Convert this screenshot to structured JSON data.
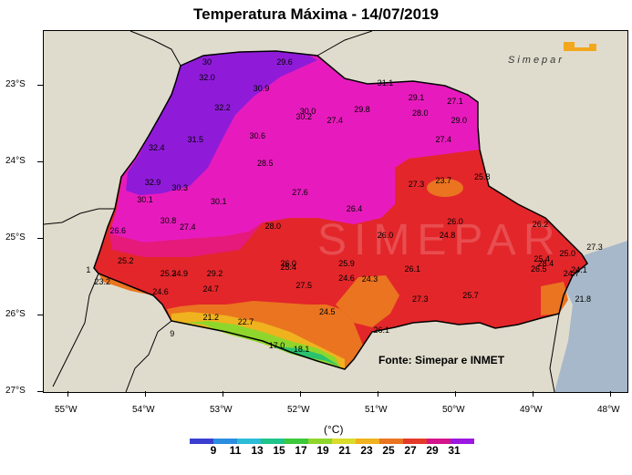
{
  "title": "Temperatura Máxima - 14/07/2019",
  "source": "Fonte: Simepar e INMET",
  "logo": "Simepar",
  "unit": "(°C)",
  "lat_labels": [
    "23°S",
    "24°S",
    "25°S",
    "26°S",
    "27°S"
  ],
  "lon_labels": [
    "55°W",
    "54°W",
    "53°W",
    "52°W",
    "51°W",
    "50°W",
    "49°W",
    "48°W"
  ],
  "colorbar": {
    "labels": [
      "9",
      "11",
      "13",
      "15",
      "17",
      "19",
      "21",
      "23",
      "25",
      "27",
      "29",
      "31"
    ],
    "colors": [
      "#3a3fd0",
      "#2b8de0",
      "#2bbcd6",
      "#1fc48a",
      "#3cc83a",
      "#8fd62c",
      "#d9dc2a",
      "#f0b21e",
      "#ea7420",
      "#e53a2a",
      "#d4148a",
      "#9a18e0"
    ]
  },
  "station_values": [
    {
      "label": "30",
      "lon": -53.2,
      "lat": -22.7
    },
    {
      "label": "29.6",
      "lon": -52.2,
      "lat": -22.7
    },
    {
      "label": "32.0",
      "lon": -53.2,
      "lat": -22.9
    },
    {
      "label": "30.9",
      "lon": -52.5,
      "lat": -23.05
    },
    {
      "label": "31.1",
      "lon": -50.9,
      "lat": -22.98
    },
    {
      "label": "29.1",
      "lon": -50.5,
      "lat": -23.17
    },
    {
      "label": "27.1",
      "lon": -50.0,
      "lat": -23.22
    },
    {
      "label": "32.2",
      "lon": -53.0,
      "lat": -23.3
    },
    {
      "label": "30.0",
      "lon": -51.9,
      "lat": -23.35
    },
    {
      "label": "30.2",
      "lon": -51.95,
      "lat": -23.42
    },
    {
      "label": "29.8",
      "lon": -51.2,
      "lat": -23.32
    },
    {
      "label": "28.0",
      "lon": -50.45,
      "lat": -23.37
    },
    {
      "label": "29.0",
      "lon": -49.95,
      "lat": -23.47
    },
    {
      "label": "27.4",
      "lon": -51.55,
      "lat": -23.47
    },
    {
      "label": "30.6",
      "lon": -52.55,
      "lat": -23.67
    },
    {
      "label": "31.5",
      "lon": -53.35,
      "lat": -23.72
    },
    {
      "label": "32.4",
      "lon": -53.85,
      "lat": -23.82
    },
    {
      "label": "27.4",
      "lon": -50.15,
      "lat": -23.72
    },
    {
      "label": "28.5",
      "lon": -52.45,
      "lat": -24.02
    },
    {
      "label": "25.8",
      "lon": -49.65,
      "lat": -24.2
    },
    {
      "label": "23.7",
      "lon": -50.15,
      "lat": -24.25
    },
    {
      "label": "27.3",
      "lon": -50.5,
      "lat": -24.3
    },
    {
      "label": "32.9",
      "lon": -53.9,
      "lat": -24.27
    },
    {
      "label": "30.3",
      "lon": -53.55,
      "lat": -24.35
    },
    {
      "label": "27.6",
      "lon": -52.0,
      "lat": -24.4
    },
    {
      "label": "30.1",
      "lon": -54.0,
      "lat": -24.5
    },
    {
      "label": "30.1",
      "lon": -53.05,
      "lat": -24.52
    },
    {
      "label": "26.4",
      "lon": -51.3,
      "lat": -24.62
    },
    {
      "label": "26.0",
      "lon": -50.0,
      "lat": -24.78
    },
    {
      "label": "26.2",
      "lon": -48.9,
      "lat": -24.82
    },
    {
      "label": "30.8",
      "lon": -53.7,
      "lat": -24.77
    },
    {
      "label": "27.4",
      "lon": -53.45,
      "lat": -24.86
    },
    {
      "label": "28.0",
      "lon": -52.35,
      "lat": -24.84
    },
    {
      "label": "26.6",
      "lon": -54.35,
      "lat": -24.9
    },
    {
      "label": "26.0",
      "lon": -50.9,
      "lat": -24.97
    },
    {
      "label": "24.8",
      "lon": -50.1,
      "lat": -24.97
    },
    {
      "label": "27.3",
      "lon": -48.2,
      "lat": -25.12
    },
    {
      "label": "25.0",
      "lon": -48.55,
      "lat": -25.2
    },
    {
      "label": "25.2",
      "lon": -54.25,
      "lat": -25.3
    },
    {
      "label": "25.4",
      "lon": -48.88,
      "lat": -25.27
    },
    {
      "label": "28.4",
      "lon": -48.83,
      "lat": -25.33
    },
    {
      "label": "26.0",
      "lon": -52.15,
      "lat": -25.33
    },
    {
      "label": "25.9",
      "lon": -51.4,
      "lat": -25.33
    },
    {
      "label": "25.4",
      "lon": -52.15,
      "lat": -25.38
    },
    {
      "label": "26.1",
      "lon": -50.55,
      "lat": -25.41
    },
    {
      "label": "26.5",
      "lon": -48.92,
      "lat": -25.41
    },
    {
      "label": "24.1",
      "lon": -48.4,
      "lat": -25.42
    },
    {
      "label": "1",
      "lon": -54.73,
      "lat": -25.42
    },
    {
      "label": "25.3",
      "lon": -53.7,
      "lat": -25.47
    },
    {
      "label": "24.9",
      "lon": -53.55,
      "lat": -25.47
    },
    {
      "label": "29.2",
      "lon": -53.1,
      "lat": -25.47
    },
    {
      "label": "24.7",
      "lon": -48.5,
      "lat": -25.47
    },
    {
      "label": "24.6",
      "lon": -51.4,
      "lat": -25.52
    },
    {
      "label": "24.3",
      "lon": -51.1,
      "lat": -25.54
    },
    {
      "label": "23.2",
      "lon": -54.55,
      "lat": -25.57
    },
    {
      "label": "27.5",
      "lon": -51.95,
      "lat": -25.62
    },
    {
      "label": "24.6",
      "lon": -53.8,
      "lat": -25.7
    },
    {
      "label": "24.7",
      "lon": -53.15,
      "lat": -25.67
    },
    {
      "label": "25.7",
      "lon": -49.8,
      "lat": -25.75
    },
    {
      "label": "27.3",
      "lon": -50.45,
      "lat": -25.8
    },
    {
      "label": "21.8",
      "lon": -48.35,
      "lat": -25.8
    },
    {
      "label": "24.5",
      "lon": -51.65,
      "lat": -25.97
    },
    {
      "label": "21.2",
      "lon": -53.15,
      "lat": -26.03
    },
    {
      "label": "22.7",
      "lon": -52.7,
      "lat": -26.1
    },
    {
      "label": "26.1",
      "lon": -50.95,
      "lat": -26.2
    },
    {
      "label": "9",
      "lon": -53.65,
      "lat": -26.25
    },
    {
      "label": "17.0",
      "lon": -52.3,
      "lat": -26.4
    },
    {
      "label": "18.1",
      "lon": -51.98,
      "lat": -26.45
    }
  ]
}
